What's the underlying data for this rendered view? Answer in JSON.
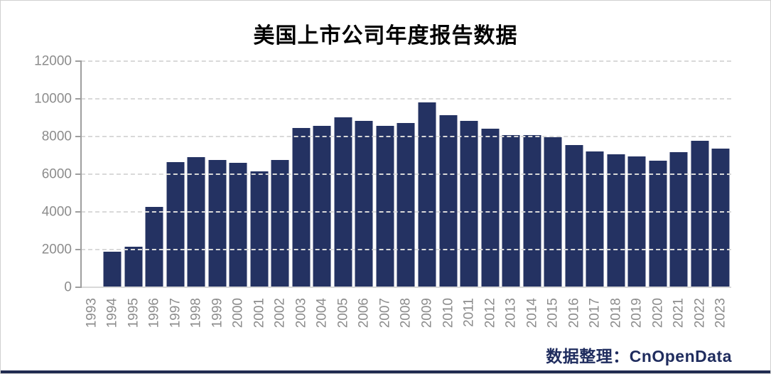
{
  "window": {
    "background": "#ffffff",
    "border_color": "#d0d0d0",
    "bottom_bar_color": "#202b50"
  },
  "chart_data": {
    "type": "bar",
    "title": "美国上市公司年度报告数据",
    "xlabel": "",
    "ylabel": "",
    "categories": [
      "1993",
      "1994",
      "1995",
      "1996",
      "1997",
      "1998",
      "1999",
      "2000",
      "2001",
      "2002",
      "2003",
      "2004",
      "2005",
      "2006",
      "2007",
      "2008",
      "2009",
      "2010",
      "2011",
      "2012",
      "2013",
      "2014",
      "2015",
      "2016",
      "2017",
      "2018",
      "2019",
      "2020",
      "2021",
      "2022",
      "2023"
    ],
    "values": [
      0,
      1880,
      2160,
      4270,
      6660,
      6890,
      6740,
      6590,
      6170,
      6740,
      8440,
      8560,
      9030,
      8830,
      8570,
      8710,
      9820,
      9150,
      8830,
      8400,
      8080,
      8070,
      7970,
      7560,
      7200,
      7060,
      6940,
      6730,
      7180,
      7790,
      7350
    ],
    "ylim": [
      0,
      12000
    ],
    "yticks": [
      0,
      2000,
      4000,
      6000,
      8000,
      10000,
      12000
    ],
    "grid": "horizontal-dashed",
    "legend": "none",
    "bar_color": "#243262",
    "grid_color": "#d9d9d9",
    "axis_color": "#9e9e9e",
    "tick_label_color": "#8c8c8c",
    "title_color": "#000000"
  },
  "footer": {
    "credit": "数据整理：CnOpenData",
    "color": "#1f2c5e"
  }
}
